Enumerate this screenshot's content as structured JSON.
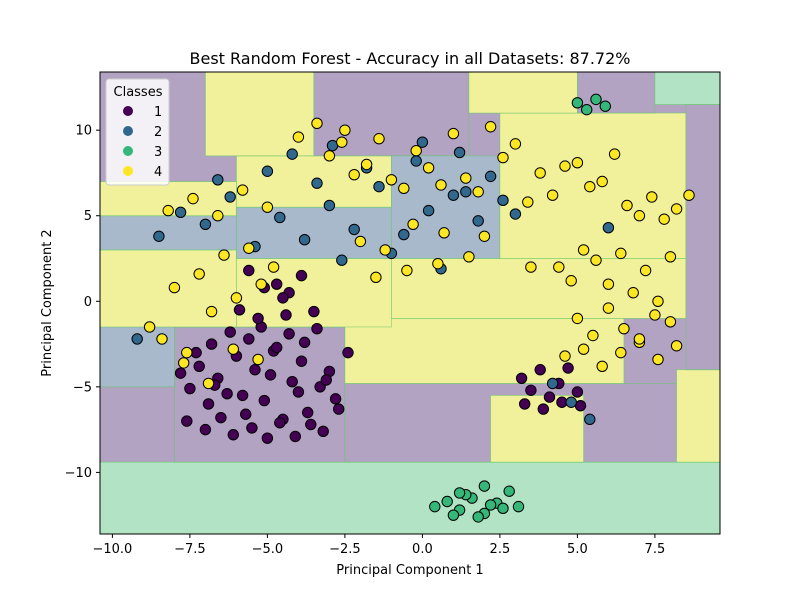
{
  "chart_data": {
    "type": "scatter",
    "title": "Best Random Forest - Accuracy in all Datasets: 87.72%",
    "xlabel": "Principal Component 1",
    "ylabel": "Principal Component 2",
    "xlim": [
      -10.4,
      9.6
    ],
    "ylim": [
      -13.6,
      13.4
    ],
    "xticks": [
      -10.0,
      -7.5,
      -5.0,
      -2.5,
      0.0,
      2.5,
      5.0,
      7.5
    ],
    "xtick_labels": [
      "−10.0",
      "−7.5",
      "−5.0",
      "−2.5",
      "0.0",
      "2.5",
      "5.0",
      "7.5"
    ],
    "yticks": [
      -10,
      -5,
      0,
      5,
      10
    ],
    "ytick_labels": [
      "−10",
      "−5",
      "0",
      "5",
      "10"
    ],
    "grid": false,
    "legend": {
      "title": "Classes",
      "placement": "top-left",
      "entries": [
        "1",
        "2",
        "3",
        "4"
      ]
    },
    "class_colors": {
      "1": "#440154",
      "2": "#31688e",
      "3": "#35b779",
      "4": "#fde725"
    },
    "region_colors": {
      "1": "#b3a3c3",
      "2": "#a7b9cb",
      "3": "#b1e3c4",
      "4": "#f1f19c"
    },
    "decision_regions": [
      {
        "class": "3",
        "x": [
          -10.4,
          9.6
        ],
        "y": [
          -13.6,
          -9.4
        ]
      },
      {
        "class": "1",
        "x": [
          -8.0,
          -2.5
        ],
        "y": [
          -9.4,
          -1.5
        ]
      },
      {
        "class": "1",
        "x": [
          -2.5,
          9.6
        ],
        "y": [
          -9.4,
          -4.8
        ]
      },
      {
        "class": "4",
        "x": [
          2.2,
          5.2
        ],
        "y": [
          -9.4,
          -5.5
        ]
      },
      {
        "class": "4",
        "x": [
          8.2,
          9.6
        ],
        "y": [
          -9.4,
          -4.0
        ]
      },
      {
        "class": "4",
        "x": [
          -2.5,
          6.5
        ],
        "y": [
          -4.8,
          -1.0
        ]
      },
      {
        "class": "2",
        "x": [
          -10.4,
          -8.0
        ],
        "y": [
          -5.0,
          3.0
        ]
      },
      {
        "class": "4",
        "x": [
          -10.4,
          -6.0
        ],
        "y": [
          -1.5,
          3.0
        ]
      },
      {
        "class": "2",
        "x": [
          -10.4,
          -6.0
        ],
        "y": [
          3.0,
          5.0
        ]
      },
      {
        "class": "4",
        "x": [
          -10.4,
          -6.0
        ],
        "y": [
          5.0,
          7.0
        ]
      },
      {
        "class": "1",
        "x": [
          -10.4,
          -6.0
        ],
        "y": [
          7.0,
          13.4
        ]
      },
      {
        "class": "4",
        "x": [
          -6.0,
          -1.0
        ],
        "y": [
          -1.5,
          2.5
        ]
      },
      {
        "class": "2",
        "x": [
          -6.0,
          -1.0
        ],
        "y": [
          2.5,
          5.5
        ]
      },
      {
        "class": "4",
        "x": [
          -6.0,
          -1.0
        ],
        "y": [
          5.5,
          8.5
        ]
      },
      {
        "class": "4",
        "x": [
          -7.0,
          -3.5
        ],
        "y": [
          8.5,
          13.4
        ]
      },
      {
        "class": "1",
        "x": [
          -3.5,
          1.5
        ],
        "y": [
          8.5,
          13.4
        ]
      },
      {
        "class": "4",
        "x": [
          -1.0,
          8.5
        ],
        "y": [
          -1.0,
          2.5
        ]
      },
      {
        "class": "2",
        "x": [
          -1.0,
          2.5
        ],
        "y": [
          2.5,
          8.5
        ]
      },
      {
        "class": "4",
        "x": [
          2.5,
          8.5
        ],
        "y": [
          2.5,
          11.0
        ]
      },
      {
        "class": "4",
        "x": [
          1.5,
          5.0
        ],
        "y": [
          11.0,
          13.4
        ]
      },
      {
        "class": "1",
        "x": [
          5.0,
          7.5
        ],
        "y": [
          11.0,
          13.4
        ]
      },
      {
        "class": "3",
        "x": [
          7.5,
          9.6
        ],
        "y": [
          11.5,
          13.4
        ]
      },
      {
        "class": "1",
        "x": [
          8.5,
          9.6
        ],
        "y": [
          -4.0,
          11.5
        ]
      }
    ],
    "series": [
      {
        "name": "1",
        "x": [
          -7.8,
          -7.5,
          -7.2,
          -6.9,
          -6.6,
          -6.3,
          -6.0,
          -5.7,
          -5.4,
          -5.1,
          -4.8,
          -4.5,
          -4.2,
          -3.9,
          -3.6,
          -3.3,
          -3.0,
          -2.7,
          -2.4,
          -7.6,
          -7.0,
          -6.5,
          -6.1,
          -5.5,
          -5.0,
          -4.6,
          -4.1,
          -3.7,
          -3.2,
          -2.8,
          -6.8,
          -6.2,
          -5.6,
          -5.2,
          -4.7,
          -4.3,
          -3.8,
          -3.4,
          -7.3,
          -5.9,
          -5.3,
          -4.4,
          -3.5,
          -6.7,
          -5.8,
          -4.9,
          -4.0,
          -3.1,
          3.2,
          3.5,
          3.8,
          4.1,
          4.4,
          4.7,
          5.0,
          3.3,
          3.9,
          4.5,
          5.1,
          -4.7,
          -4.3,
          -3.9,
          -5.6,
          -5.1,
          -4.5
        ],
        "y": [
          -4.2,
          -5.1,
          -3.8,
          -6.0,
          -4.5,
          -5.4,
          -3.2,
          -6.6,
          -4.0,
          -5.8,
          -2.9,
          -6.9,
          -4.7,
          -3.5,
          -7.2,
          -5.0,
          -4.1,
          -6.3,
          -3.0,
          -7.0,
          -7.5,
          -6.8,
          -7.8,
          -7.4,
          -8.0,
          -7.1,
          -7.9,
          -6.5,
          -7.6,
          -5.7,
          -2.5,
          -1.8,
          -2.2,
          -1.5,
          -2.7,
          -1.9,
          -2.4,
          -1.6,
          -3.0,
          -0.5,
          -1.0,
          -0.8,
          -0.6,
          -4.9,
          -5.5,
          -4.3,
          -5.3,
          -4.6,
          -4.5,
          -5.2,
          -4.0,
          -5.6,
          -4.8,
          -3.9,
          -5.3,
          -6.0,
          -6.3,
          -5.9,
          -6.1,
          1.0,
          0.5,
          1.5,
          1.8,
          0.8,
          0.2
        ]
      },
      {
        "name": "2",
        "x": [
          -8.5,
          -7.8,
          -7.0,
          -6.2,
          -5.4,
          -4.6,
          -3.8,
          -3.0,
          -2.2,
          -1.4,
          -0.6,
          0.2,
          1.0,
          1.8,
          2.6,
          -6.6,
          -5.0,
          -3.4,
          -1.8,
          -0.2,
          1.4,
          2.2,
          3.0,
          -2.6,
          -1.0,
          0.6,
          4.2,
          4.8,
          5.4,
          6.0,
          -9.2,
          -4.2,
          -2.9,
          0.0,
          1.2
        ],
        "y": [
          3.8,
          5.2,
          4.5,
          6.1,
          3.2,
          4.9,
          3.6,
          5.6,
          4.2,
          6.7,
          3.9,
          5.3,
          6.2,
          4.7,
          5.9,
          7.1,
          7.6,
          6.9,
          7.8,
          8.2,
          6.4,
          7.3,
          5.1,
          2.4,
          2.8,
          1.9,
          -4.8,
          -5.9,
          -6.9,
          4.3,
          -2.2,
          8.6,
          9.1,
          9.3,
          8.7
        ]
      },
      {
        "name": "3",
        "x": [
          0.4,
          0.8,
          1.2,
          1.6,
          2.0,
          2.4,
          2.8,
          3.1,
          1.0,
          1.4,
          1.8,
          2.2,
          2.6,
          1.2,
          2.0,
          5.0,
          5.3,
          5.6,
          5.9
        ],
        "y": [
          -12.0,
          -11.7,
          -12.2,
          -11.5,
          -12.4,
          -11.8,
          -11.1,
          -12.0,
          -12.5,
          -11.3,
          -12.6,
          -11.9,
          -12.1,
          -11.2,
          -10.8,
          11.6,
          11.2,
          11.8,
          11.4
        ]
      },
      {
        "name": "4",
        "x": [
          -8.8,
          -8.4,
          -8.0,
          -7.6,
          -7.2,
          -6.8,
          -6.4,
          -6.0,
          -5.6,
          -5.2,
          -4.8,
          -8.2,
          -7.4,
          -6.6,
          -5.8,
          -5.0,
          -7.7,
          -6.9,
          -6.1,
          -5.3,
          -3.0,
          -2.6,
          -2.2,
          -1.8,
          -1.4,
          -1.0,
          -0.6,
          -0.2,
          0.2,
          0.6,
          1.0,
          1.4,
          1.8,
          2.2,
          2.6,
          3.0,
          3.4,
          3.8,
          4.2,
          4.6,
          5.0,
          5.4,
          5.8,
          6.2,
          6.6,
          7.0,
          7.4,
          7.8,
          8.2,
          8.6,
          4.4,
          4.8,
          5.2,
          5.6,
          6.0,
          6.4,
          6.8,
          7.2,
          7.6,
          8.0,
          5.0,
          5.5,
          6.0,
          6.5,
          7.0,
          7.5,
          8.0,
          4.6,
          5.2,
          5.8,
          6.4,
          7.0,
          7.6,
          8.2,
          -1.5,
          -0.5,
          0.5,
          1.5,
          -2.0,
          -1.2,
          -0.3,
          2.0,
          3.5,
          -4.0,
          -3.4,
          -2.5,
          0.7
        ],
        "y": [
          -1.5,
          -2.2,
          0.8,
          -3.0,
          1.6,
          -0.6,
          2.7,
          0.2,
          3.1,
          1.0,
          2.0,
          5.3,
          6.0,
          5.0,
          6.5,
          5.5,
          -3.6,
          -4.8,
          -2.8,
          -3.4,
          8.5,
          9.3,
          7.4,
          8.0,
          9.5,
          7.1,
          6.6,
          8.8,
          7.8,
          6.8,
          9.8,
          7.2,
          6.4,
          10.2,
          8.4,
          9.2,
          5.8,
          7.5,
          6.2,
          7.9,
          8.1,
          6.7,
          7.0,
          8.6,
          5.6,
          5.0,
          6.1,
          4.8,
          5.4,
          6.2,
          2.0,
          1.2,
          3.0,
          2.4,
          1.0,
          2.8,
          0.5,
          1.8,
          0.0,
          2.6,
          -1.0,
          -2.0,
          -0.4,
          -1.6,
          -2.4,
          -0.8,
          -1.2,
          -3.2,
          -2.8,
          -3.8,
          -3.0,
          -2.2,
          -3.4,
          -2.6,
          1.4,
          1.8,
          2.2,
          2.6,
          3.5,
          3.0,
          4.5,
          3.8,
          2.0,
          9.6,
          10.4,
          10.0,
          4.0
        ]
      }
    ]
  }
}
